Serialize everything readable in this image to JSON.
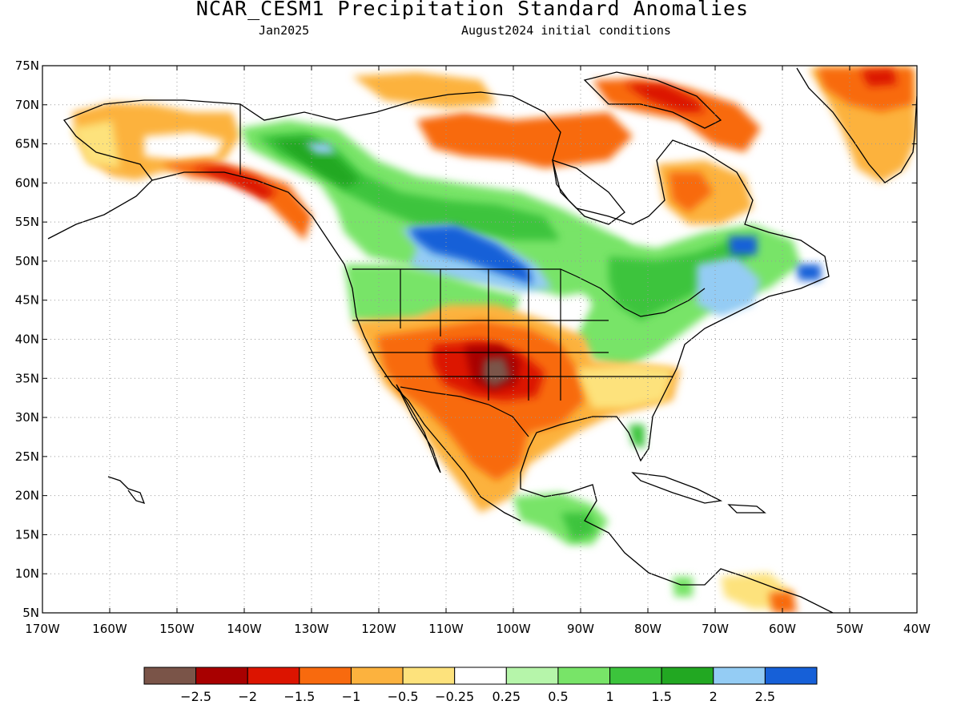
{
  "header": {
    "title": "NCAR_CESM1 Precipitation Standard Anomalies",
    "subtitle_left": "Jan2025",
    "subtitle_right": "August2024 initial conditions"
  },
  "map": {
    "region": "North America",
    "projection": "equirectangular",
    "lon_range": [
      -170,
      -40
    ],
    "lat_range": [
      5,
      75
    ],
    "grid": "dotted",
    "lat_ticks": [
      "5N",
      "10N",
      "15N",
      "20N",
      "25N",
      "30N",
      "35N",
      "40N",
      "45N",
      "50N",
      "55N",
      "60N",
      "65N",
      "70N",
      "75N"
    ],
    "lon_ticks": [
      "170W",
      "160W",
      "150W",
      "140W",
      "130W",
      "120W",
      "110W",
      "100W",
      "90W",
      "80W",
      "70W",
      "60W",
      "50W",
      "40W"
    ],
    "land_color": "#ffffff",
    "outline_color": "#000000"
  },
  "colorbar": {
    "colors": [
      "#7a5448",
      "#a80000",
      "#dc1400",
      "#f86a0e",
      "#fcb23e",
      "#fde27c",
      "#ffffff",
      "#b6f5aa",
      "#78e468",
      "#3cc43c",
      "#22a822",
      "#94ccf4",
      "#1660d8"
    ],
    "labels": [
      "-2.5",
      "-2",
      "-1.5",
      "-1",
      "-0.5",
      "-0.25",
      "0.25",
      "0.5",
      "1",
      "1.5",
      "2",
      "2.5"
    ]
  },
  "anomaly_regions": [
    {
      "name": "Alaska west coast",
      "lon": -157,
      "lat": 64,
      "level": "-0.5"
    },
    {
      "name": "Alaska south",
      "lon": -147,
      "lat": 61,
      "level": "-1.5"
    },
    {
      "name": "Yukon",
      "lon": -132,
      "lat": 64,
      "level": "1.5"
    },
    {
      "name": "Canadian prairies",
      "lon": -102,
      "lat": 51,
      "level": "2.5"
    },
    {
      "name": "Northern Quebec",
      "lon": -77,
      "lat": 60,
      "level": "-1"
    },
    {
      "name": "Greenland",
      "lon": -47,
      "lat": 70,
      "level": "-1"
    },
    {
      "name": "Southern Plains",
      "lon": -103,
      "lat": 35,
      "level": "-2.5"
    },
    {
      "name": "Southwest US",
      "lon": -112,
      "lat": 34,
      "level": "-1"
    },
    {
      "name": "Gulf Coast",
      "lon": -88,
      "lat": 32,
      "level": "-0.5"
    },
    {
      "name": "Northern Mexico",
      "lon": -105,
      "lat": 26,
      "level": "-1"
    },
    {
      "name": "Great Lakes / Ohio Valley",
      "lon": -84,
      "lat": 41,
      "level": "1"
    },
    {
      "name": "New England",
      "lon": -70,
      "lat": 46,
      "level": "2"
    },
    {
      "name": "Newfoundland",
      "lon": -56,
      "lat": 48,
      "level": "2.5"
    },
    {
      "name": "Central America",
      "lon": -88,
      "lat": 16,
      "level": "1"
    },
    {
      "name": "Northern Venezuela",
      "lon": -66,
      "lat": 9,
      "level": "-0.5"
    }
  ]
}
